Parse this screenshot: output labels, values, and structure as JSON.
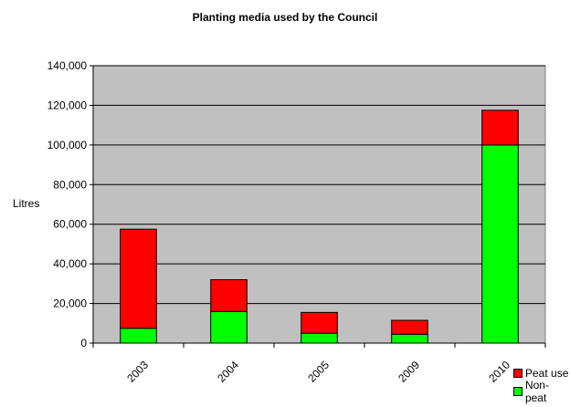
{
  "chart_data": {
    "type": "bar",
    "stacked": true,
    "title": "Planting media used by the Council",
    "xlabel": "",
    "ylabel": "Litres",
    "categories": [
      "2003",
      "2004",
      "2005",
      "2009",
      "2010"
    ],
    "series": [
      {
        "name": "Non-peat",
        "color": "#00ff00",
        "values": [
          7500,
          16000,
          5000,
          4500,
          100000
        ]
      },
      {
        "name": "Peat use",
        "color": "#ff0000",
        "values": [
          50000,
          16000,
          10500,
          7000,
          17500
        ]
      }
    ],
    "ylim": [
      0,
      140000
    ],
    "yticks": [
      "0",
      "20,000",
      "40,000",
      "60,000",
      "80,000",
      "100,000",
      "120,000",
      "140,000"
    ],
    "ytick_values": [
      0,
      20000,
      40000,
      60000,
      80000,
      100000,
      120000,
      140000
    ],
    "grid": true,
    "plot_background": "#c0c0c0",
    "legend_position": "bottom-right"
  }
}
